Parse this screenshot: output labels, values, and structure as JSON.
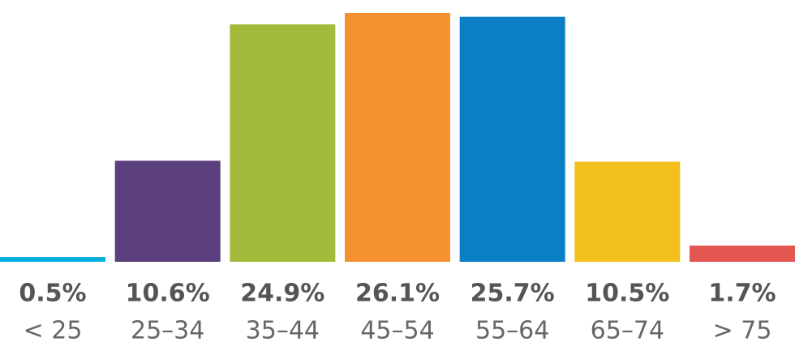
{
  "chart_data": {
    "type": "bar",
    "categories": [
      "< 25",
      "25–34",
      "35–44",
      "45–54",
      "55–64",
      "65–74",
      "> 75"
    ],
    "values": [
      0.5,
      10.6,
      24.9,
      26.1,
      25.7,
      10.5,
      1.7
    ],
    "value_labels": [
      "0.5%",
      "10.6%",
      "24.9%",
      "26.1%",
      "25.7%",
      "10.5%",
      "1.7%"
    ],
    "colors": [
      "#00b0e0",
      "#5b3f7e",
      "#a3bb3a",
      "#f3922f",
      "#0a7fc4",
      "#f3bf1c",
      "#e45650"
    ]
  }
}
